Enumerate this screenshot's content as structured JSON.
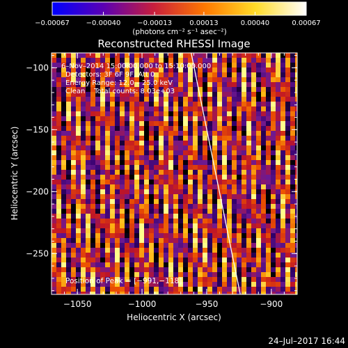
{
  "chart_data": {
    "type": "heatmap",
    "title": "Reconstructed RHESSI Image",
    "xlabel": "Heliocentric X (arcsec)",
    "ylabel": "Heliocentric Y (arcsec)",
    "xlim": [
      -1070,
      -880
    ],
    "ylim": [
      -283,
      -88
    ],
    "x_ticks": [
      -1050,
      -1000,
      -950,
      -900
    ],
    "x_tick_labels": [
      "−1050",
      "−1000",
      "−950",
      "−900"
    ],
    "y_ticks": [
      -250,
      -200,
      -150,
      -100
    ],
    "y_tick_labels": [
      "−250",
      "−200",
      "−150",
      "−100"
    ],
    "colorbar": {
      "range": [
        -0.00067,
        0.00067
      ],
      "tick_values": [
        -0.00067,
        -0.0004,
        -0.00013,
        0.00013,
        0.0004,
        0.00067
      ],
      "tick_labels": [
        "−0.00067",
        "−0.00040",
        "−0.00013",
        "0.00013",
        "0.00040",
        "0.00067"
      ],
      "units": "(photons cm⁻² s⁻¹ asec⁻²)",
      "colors": [
        "#0000ff",
        "#5a00b4",
        "#c81e3c",
        "#ff7800",
        "#ffdc28",
        "#ffffff"
      ]
    },
    "annotations": {
      "time_range": "6–Nov–2014 15:00:00.000 to 15:10:00.000",
      "detectors": "Detectors: 3F 6F 9F, Att 0",
      "energy_range": "Energy Range: 12.0 – 25.0 keV",
      "method_counts": "Clean    Total counts: 8.03e+03",
      "peak": "Position of Peak = [−991,−118]"
    },
    "peak_position": [
      -991,
      -118
    ],
    "limb_line": [
      [
        -962,
        -88
      ],
      [
        -924,
        -283
      ]
    ],
    "stripes": {
      "slant_per_arcsec_y": 0.1,
      "period_arcsec": 8.3
    }
  },
  "footer": {
    "timestamp": "24–Jul–2017 16:44"
  }
}
